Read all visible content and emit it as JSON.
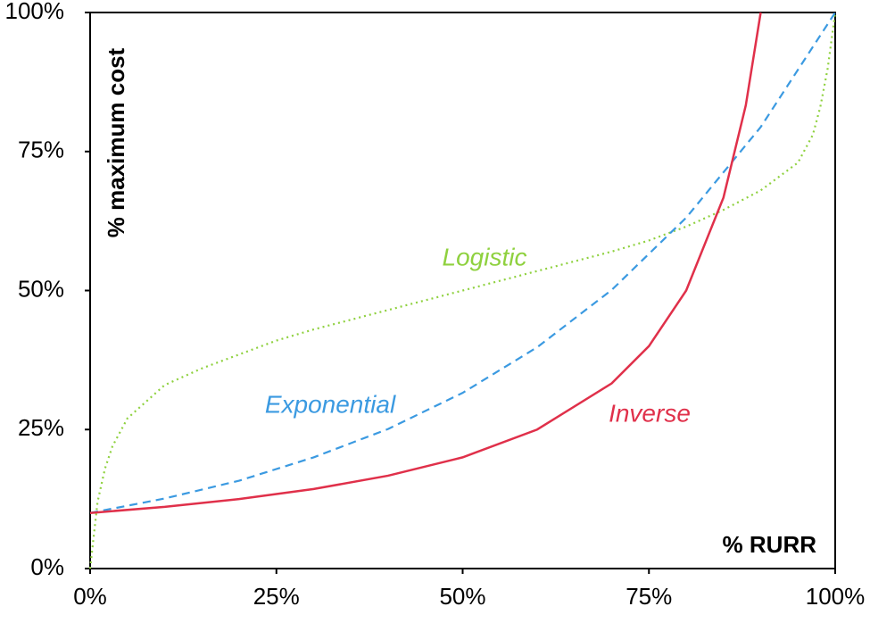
{
  "chart_data": {
    "type": "line",
    "y_label": "% maximum cost",
    "x_label": "% RURR",
    "xlim": [
      0,
      100
    ],
    "ylim": [
      0,
      100
    ],
    "xticks": [
      {
        "value": 0,
        "label": "0%"
      },
      {
        "value": 25,
        "label": "25%"
      },
      {
        "value": 50,
        "label": "50%"
      },
      {
        "value": 75,
        "label": "75%"
      },
      {
        "value": 100,
        "label": "100%"
      }
    ],
    "yticks": [
      {
        "value": 0,
        "label": "0%"
      },
      {
        "value": 25,
        "label": "25%"
      },
      {
        "value": 50,
        "label": "50%"
      },
      {
        "value": 75,
        "label": "75%"
      },
      {
        "value": 100,
        "label": "100%"
      }
    ],
    "series": [
      {
        "name": "Logistic",
        "color": "#8fd13f",
        "style": "dotted",
        "x": [
          0,
          1,
          2,
          3,
          5,
          10,
          15,
          20,
          25,
          30,
          40,
          50,
          60,
          70,
          75,
          80,
          85,
          90,
          95,
          97,
          98,
          99,
          100
        ],
        "values": [
          0,
          12,
          18,
          22,
          27,
          33,
          36,
          38.5,
          41,
          43,
          46.5,
          50,
          53.5,
          57,
          59,
          61.5,
          64.5,
          68,
          73,
          78,
          83,
          90,
          100
        ]
      },
      {
        "name": "Exponential",
        "color": "#3b9ae1",
        "style": "dashed",
        "x": [
          0,
          10,
          20,
          30,
          40,
          50,
          60,
          70,
          80,
          90,
          100
        ],
        "values": [
          10,
          12.6,
          15.8,
          20,
          25.1,
          31.6,
          39.8,
          50.1,
          63.1,
          79.4,
          100
        ]
      },
      {
        "name": "Inverse",
        "color": "#e0304a",
        "style": "solid",
        "x": [
          0,
          10,
          20,
          30,
          40,
          50,
          60,
          70,
          75,
          80,
          85,
          88,
          90
        ],
        "values": [
          10,
          11.1,
          12.5,
          14.3,
          16.7,
          20,
          25,
          33.3,
          40,
          50,
          66.7,
          83.3,
          100
        ]
      }
    ]
  }
}
